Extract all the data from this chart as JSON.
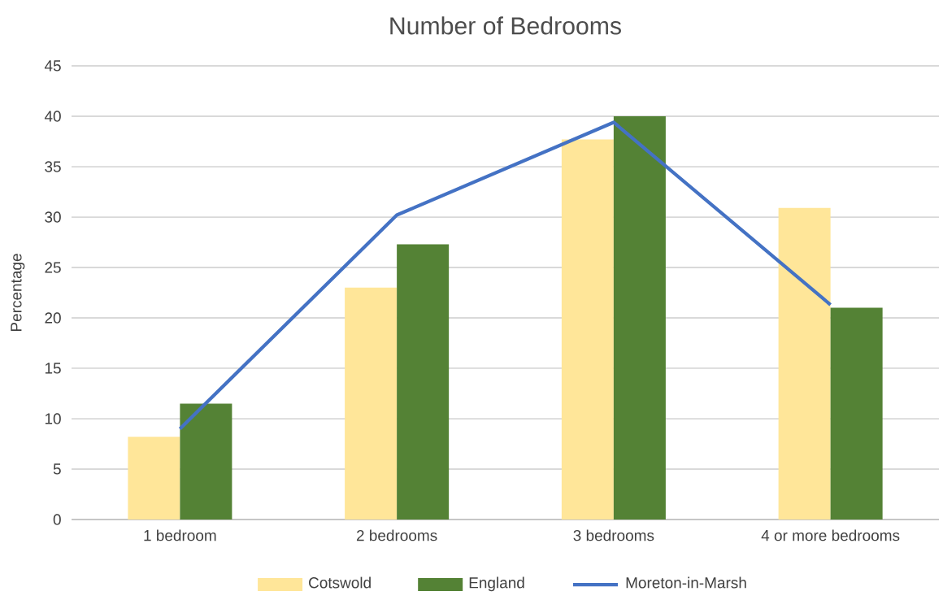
{
  "chart_data": {
    "type": "bar",
    "title": "Number of Bedrooms",
    "ylabel": "Percentage",
    "categories": [
      "1 bedroom",
      "2 bedrooms",
      "3 bedrooms",
      "4 or more bedrooms"
    ],
    "series": [
      {
        "name": "Cotswold",
        "color": "#ffe699",
        "values": [
          8.2,
          23.0,
          37.7,
          30.9
        ]
      },
      {
        "name": "England",
        "color": "#548235",
        "values": [
          11.5,
          27.3,
          40.0,
          21.0
        ]
      },
      {
        "name": "Moreton-in-Marsh",
        "type": "line",
        "color": "#4472c4",
        "values": [
          9.0,
          30.2,
          39.4,
          21.3
        ]
      }
    ],
    "ylim": [
      0,
      45
    ],
    "yticks": [
      0,
      5,
      10,
      15,
      20,
      25,
      30,
      35,
      40,
      45
    ],
    "grid": "y",
    "legend": "bottom",
    "marker": "none",
    "line_style": "solid"
  }
}
